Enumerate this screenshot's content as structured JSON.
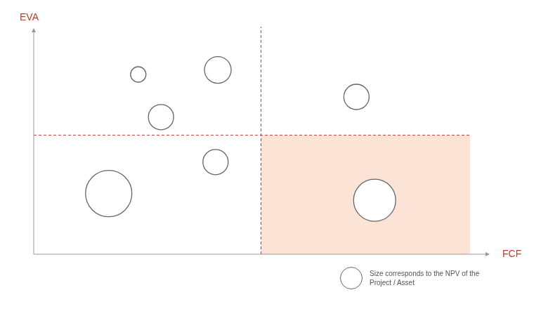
{
  "chart_data": {
    "type": "bubble",
    "x_label": "FCF",
    "y_label": "EVA",
    "xlim": [
      0,
      100
    ],
    "ylim": [
      0,
      100
    ],
    "xticks": [],
    "yticks": [],
    "tick_labels": false,
    "grid": false,
    "series": [
      {
        "color": "#666666",
        "x": [
          23,
          40.5,
          28,
          71,
          40,
          16.5,
          75
        ],
        "values": [
          80,
          82,
          61,
          70,
          41,
          27,
          24
        ],
        "sizes": [
          11,
          19,
          18,
          18,
          18,
          33,
          30
        ]
      }
    ],
    "quadrant_lines": {
      "x": 50,
      "y": 53
    },
    "shaded_quadrant": {
      "xlim": [
        50,
        96
      ],
      "ylim": [
        0,
        53
      ]
    },
    "size_note": "Size corresponds to the NPV of the Project / Asset"
  }
}
